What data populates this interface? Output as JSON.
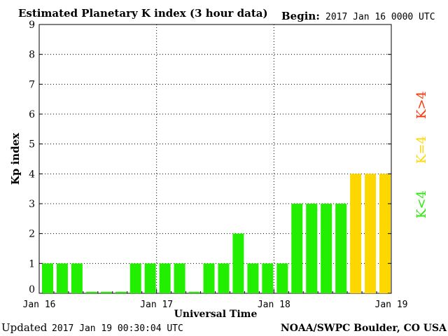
{
  "header": {
    "title": "Estimated Planetary K index (3 hour data)",
    "begin_label": "Begin:",
    "begin_value": "2017 Jan 16 0000 UTC"
  },
  "footer": {
    "updated_label": "Updated",
    "updated_value": "2017 Jan 19 00:30:04 UTC",
    "credit": "NOAA/SWPC Boulder, CO USA"
  },
  "legend": {
    "above": {
      "label": "K>4",
      "color": "#ff3300"
    },
    "equal": {
      "label": "K=4",
      "color": "#ffd700"
    },
    "below": {
      "label": "K<4",
      "color": "#22ee00"
    }
  },
  "chart_data": {
    "type": "bar",
    "xlabel": "Universal Time",
    "ylabel": "Kp index",
    "ylim": [
      0,
      9
    ],
    "yticks": [
      "0",
      "1",
      "2",
      "3",
      "4",
      "5",
      "6",
      "7",
      "8",
      "9"
    ],
    "xticks": [
      "Jan 16",
      "Jan 17",
      "Jan 18",
      "Jan 19"
    ],
    "grid": true,
    "bar_interval_hours": 3,
    "values": [
      1,
      1,
      1,
      0,
      0,
      0,
      1,
      1,
      1,
      1,
      0,
      1,
      1,
      2,
      1,
      1,
      1,
      3,
      3,
      3,
      3,
      4,
      4,
      4
    ],
    "colors": {
      "below": "#22ee00",
      "equal": "#ffd700",
      "above": "#ff3300"
    }
  }
}
